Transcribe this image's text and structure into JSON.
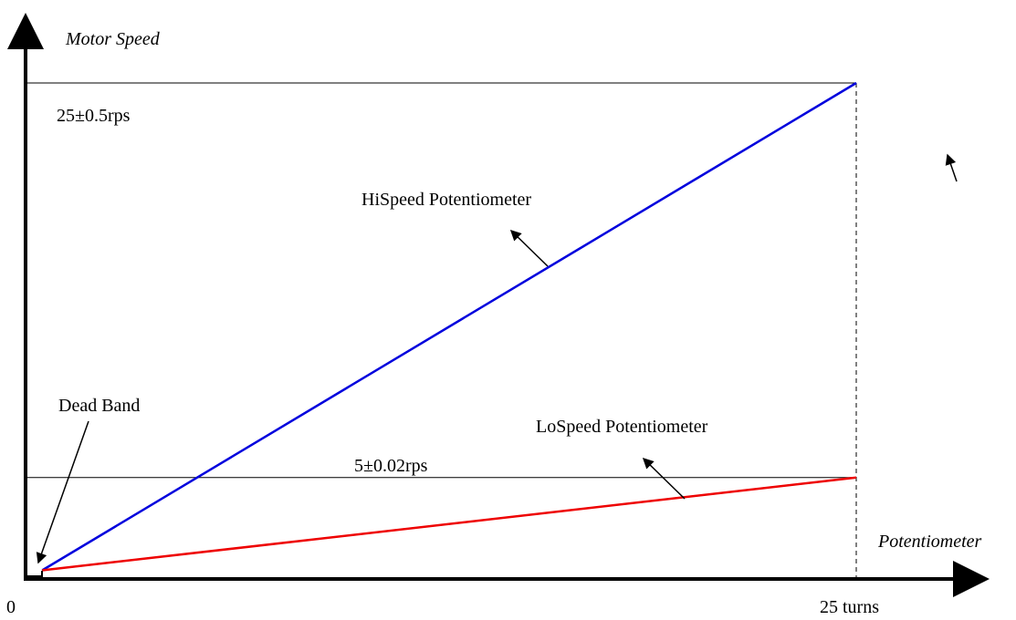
{
  "chart_data": {
    "type": "line",
    "xlabel": "Potentiometer",
    "ylabel": "Motor Speed",
    "x_ticks": [
      "0",
      "25 turns"
    ],
    "xlim": [
      0,
      25
    ],
    "ylim": [
      0,
      25
    ],
    "series": [
      {
        "name": "HiSpeed Potentiometer",
        "color": "#0000dd",
        "x": [
          0.5,
          25
        ],
        "y": [
          0.3,
          25
        ]
      },
      {
        "name": "LoSpeed Potentiometer",
        "color": "#ee0000",
        "x": [
          0.5,
          25
        ],
        "y": [
          0.3,
          5
        ]
      }
    ],
    "reference_lines": [
      {
        "label": "25±0.5rps",
        "y": 25
      },
      {
        "label": "5±0.02rps",
        "y": 5
      }
    ],
    "dead_band": {
      "label": "Dead Band",
      "x": [
        0,
        0.5
      ]
    }
  }
}
